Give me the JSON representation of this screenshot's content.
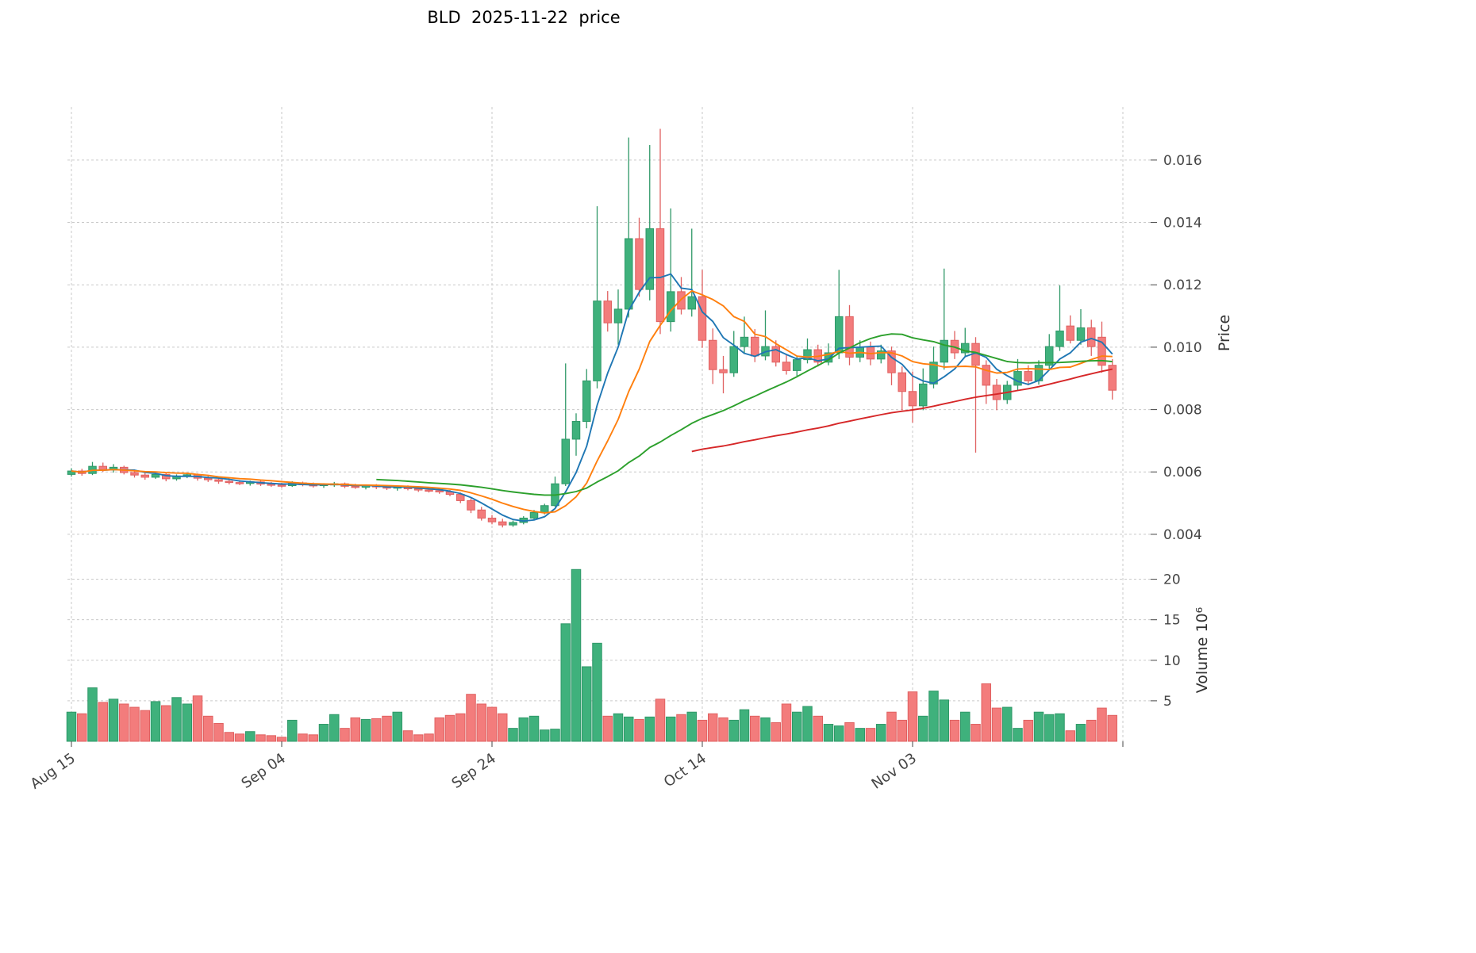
{
  "chart_data": {
    "type": "candlestick",
    "title": "BLD  2025-11-22  price",
    "ylabel_price": "Price",
    "ylabel_volume": "Volume",
    "volume_unit": "10⁶",
    "grid": true,
    "legend": "none",
    "price_ticks": [
      0.004,
      0.006,
      0.008,
      0.01,
      0.012,
      0.014,
      0.016
    ],
    "volume_ticks": [
      5,
      10,
      15,
      20
    ],
    "x_ticks": [
      {
        "label": "Aug 15",
        "day_index": 0
      },
      {
        "label": "Sep 04",
        "day_index": 20
      },
      {
        "label": "Sep 24",
        "day_index": 40
      },
      {
        "label": "Oct 14",
        "day_index": 60
      },
      {
        "label": "Nov 03",
        "day_index": 80
      },
      {
        "label": "",
        "day_index": 100
      }
    ],
    "ylim_price": [
      0.00321,
      0.0177
    ],
    "ylim_volume": [
      0,
      22.5
    ],
    "colors": {
      "up": "#3fb17c",
      "up_edge": "#2f9868",
      "down": "#f37c7c",
      "down_edge": "#e06060",
      "grid": "#c9c9c9",
      "text": "#444444",
      "title": "#000000"
    },
    "moving_averages": [
      {
        "label": "MA5",
        "window": 5,
        "color": "#1f77b4",
        "full_window_only": false
      },
      {
        "label": "MA10",
        "window": 10,
        "color": "#ff7f0e",
        "full_window_only": false
      },
      {
        "label": "MA30",
        "window": 30,
        "color": "#2ca02c",
        "full_window_only": true
      },
      {
        "label": "MA60",
        "window": 60,
        "color": "#d62728",
        "full_window_only": true
      }
    ],
    "dates": [
      "2025-08-15",
      "2025-08-16",
      "2025-08-17",
      "2025-08-18",
      "2025-08-19",
      "2025-08-20",
      "2025-08-21",
      "2025-08-22",
      "2025-08-23",
      "2025-08-24",
      "2025-08-25",
      "2025-08-26",
      "2025-08-27",
      "2025-08-28",
      "2025-08-29",
      "2025-08-30",
      "2025-08-31",
      "2025-09-01",
      "2025-09-02",
      "2025-09-03",
      "2025-09-04",
      "2025-09-05",
      "2025-09-06",
      "2025-09-07",
      "2025-09-08",
      "2025-09-09",
      "2025-09-10",
      "2025-09-11",
      "2025-09-12",
      "2025-09-13",
      "2025-09-14",
      "2025-09-15",
      "2025-09-16",
      "2025-09-17",
      "2025-09-18",
      "2025-09-19",
      "2025-09-20",
      "2025-09-21",
      "2025-09-22",
      "2025-09-23",
      "2025-09-24",
      "2025-09-25",
      "2025-09-26",
      "2025-09-27",
      "2025-09-28",
      "2025-09-29",
      "2025-09-30",
      "2025-10-01",
      "2025-10-02",
      "2025-10-03",
      "2025-10-04",
      "2025-10-05",
      "2025-10-06",
      "2025-10-07",
      "2025-10-08",
      "2025-10-09",
      "2025-10-10",
      "2025-10-11",
      "2025-10-12",
      "2025-10-13",
      "2025-10-14",
      "2025-10-15",
      "2025-10-16",
      "2025-10-17",
      "2025-10-18",
      "2025-10-19",
      "2025-10-20",
      "2025-10-21",
      "2025-10-22",
      "2025-10-23",
      "2025-10-24",
      "2025-10-25",
      "2025-10-26",
      "2025-10-27",
      "2025-10-28",
      "2025-10-29",
      "2025-10-30",
      "2025-10-31",
      "2025-11-01",
      "2025-11-02",
      "2025-11-03",
      "2025-11-04",
      "2025-11-05",
      "2025-11-06",
      "2025-11-07",
      "2025-11-08",
      "2025-11-09",
      "2025-11-10",
      "2025-11-11",
      "2025-11-12",
      "2025-11-13",
      "2025-11-14",
      "2025-11-15",
      "2025-11-16",
      "2025-11-17",
      "2025-11-18",
      "2025-11-19",
      "2025-11-20",
      "2025-11-21",
      "2025-11-22"
    ],
    "open": [
      0.00592,
      0.00603,
      0.00595,
      0.00618,
      0.00607,
      0.00615,
      0.00598,
      0.0059,
      0.00583,
      0.00592,
      0.00578,
      0.00587,
      0.00591,
      0.0058,
      0.00575,
      0.0057,
      0.00566,
      0.00563,
      0.00568,
      0.00561,
      0.00558,
      0.00556,
      0.00565,
      0.00559,
      0.00556,
      0.0056,
      0.00562,
      0.00554,
      0.00551,
      0.00557,
      0.00552,
      0.00548,
      0.00553,
      0.00546,
      0.00542,
      0.0054,
      0.00536,
      0.00528,
      0.00508,
      0.00478,
      0.00452,
      0.0044,
      0.0043,
      0.00438,
      0.00452,
      0.0047,
      0.00492,
      0.00562,
      0.00705,
      0.00762,
      0.00892,
      0.01148,
      0.01078,
      0.01122,
      0.01348,
      0.01185,
      0.0138,
      0.01082,
      0.01178,
      0.01122,
      0.01162,
      0.01022,
      0.00928,
      0.00918,
      0.01002,
      0.01032,
      0.00972,
      0.01002,
      0.00952,
      0.00925,
      0.0096,
      0.00992,
      0.00952,
      0.00982,
      0.01098,
      0.00968,
      0.01,
      0.00962,
      0.00988,
      0.00918,
      0.00858,
      0.00812,
      0.00882,
      0.00952,
      0.01022,
      0.00982,
      0.01012,
      0.00942,
      0.00878,
      0.00832,
      0.00878,
      0.00922,
      0.00892,
      0.00942,
      0.01002,
      0.01068,
      0.01022,
      0.01062,
      0.01032,
      0.00942
    ],
    "high": [
      0.00612,
      0.0061,
      0.00632,
      0.0063,
      0.00625,
      0.0062,
      0.00608,
      0.006,
      0.00598,
      0.00596,
      0.00592,
      0.00598,
      0.00595,
      0.00588,
      0.00582,
      0.00578,
      0.00574,
      0.00572,
      0.00572,
      0.00568,
      0.00565,
      0.0057,
      0.00569,
      0.00566,
      0.00564,
      0.00568,
      0.00566,
      0.00562,
      0.0056,
      0.00561,
      0.00558,
      0.00556,
      0.00557,
      0.00552,
      0.00549,
      0.00546,
      0.00542,
      0.00534,
      0.00515,
      0.00488,
      0.00462,
      0.0045,
      0.00444,
      0.00458,
      0.00478,
      0.00498,
      0.00585,
      0.00948,
      0.00788,
      0.0093,
      0.01452,
      0.0118,
      0.01185,
      0.01672,
      0.01415,
      0.01648,
      0.017,
      0.01445,
      0.01225,
      0.0138,
      0.01248,
      0.0106,
      0.00972,
      0.01052,
      0.01098,
      0.01058,
      0.01118,
      0.01022,
      0.00978,
      0.00972,
      0.01028,
      0.01008,
      0.01012,
      0.01248,
      0.01135,
      0.01022,
      0.01018,
      0.01008,
      0.01002,
      0.00938,
      0.00922,
      0.00932,
      0.01002,
      0.01252,
      0.01052,
      0.01062,
      0.01032,
      0.00958,
      0.00898,
      0.00892,
      0.00962,
      0.00942,
      0.00958,
      0.01042,
      0.01198,
      0.01102,
      0.01122,
      0.01088,
      0.01082,
      0.00962
    ],
    "low": [
      0.00585,
      0.00588,
      0.0059,
      0.006,
      0.00598,
      0.00592,
      0.00582,
      0.00575,
      0.00578,
      0.0057,
      0.00572,
      0.0058,
      0.00572,
      0.00568,
      0.00562,
      0.0056,
      0.00558,
      0.00556,
      0.00555,
      0.00552,
      0.0055,
      0.00552,
      0.00554,
      0.0055,
      0.00549,
      0.00552,
      0.00548,
      0.00546,
      0.00544,
      0.00545,
      0.00542,
      0.0054,
      0.00541,
      0.00536,
      0.00534,
      0.0053,
      0.00522,
      0.005,
      0.00468,
      0.00444,
      0.00432,
      0.00422,
      0.00424,
      0.00432,
      0.00446,
      0.00464,
      0.00488,
      0.00555,
      0.00652,
      0.0074,
      0.00868,
      0.0105,
      0.01008,
      0.01095,
      0.01162,
      0.0115,
      0.01042,
      0.0105,
      0.01105,
      0.01098,
      0.00998,
      0.00882,
      0.00852,
      0.00905,
      0.00978,
      0.00952,
      0.00958,
      0.00938,
      0.00912,
      0.00908,
      0.00948,
      0.00938,
      0.00942,
      0.00962,
      0.00942,
      0.00952,
      0.00942,
      0.00948,
      0.00878,
      0.00798,
      0.00758,
      0.00798,
      0.00868,
      0.00928,
      0.00962,
      0.00968,
      0.00662,
      0.00818,
      0.00798,
      0.00818,
      0.00862,
      0.00878,
      0.0088,
      0.00928,
      0.00988,
      0.01012,
      0.01008,
      0.00972,
      0.00918,
      0.00832
    ],
    "close": [
      0.00603,
      0.00595,
      0.00618,
      0.00607,
      0.00615,
      0.00598,
      0.0059,
      0.00583,
      0.00592,
      0.00578,
      0.00587,
      0.00591,
      0.0058,
      0.00575,
      0.0057,
      0.00566,
      0.00563,
      0.00568,
      0.00561,
      0.00558,
      0.00556,
      0.00565,
      0.00559,
      0.00556,
      0.0056,
      0.00562,
      0.00554,
      0.00551,
      0.00557,
      0.00552,
      0.00548,
      0.00553,
      0.00546,
      0.00542,
      0.0054,
      0.00536,
      0.00528,
      0.00508,
      0.00478,
      0.00452,
      0.0044,
      0.0043,
      0.00438,
      0.00452,
      0.0047,
      0.00492,
      0.00562,
      0.00705,
      0.00762,
      0.00892,
      0.01148,
      0.01078,
      0.01122,
      0.01348,
      0.01185,
      0.0138,
      0.01082,
      0.01178,
      0.01122,
      0.01162,
      0.01022,
      0.00928,
      0.00918,
      0.01002,
      0.01032,
      0.00972,
      0.01002,
      0.00952,
      0.00925,
      0.0096,
      0.00992,
      0.00952,
      0.00982,
      0.01098,
      0.00968,
      0.01,
      0.00962,
      0.00988,
      0.00918,
      0.00858,
      0.00812,
      0.00882,
      0.00952,
      0.01022,
      0.00982,
      0.01012,
      0.00942,
      0.00878,
      0.00832,
      0.00878,
      0.00922,
      0.00892,
      0.00942,
      0.01002,
      0.01052,
      0.01022,
      0.01062,
      0.01002,
      0.00942,
      0.00862
    ],
    "volume_millions": [
      3.6,
      3.4,
      6.6,
      4.8,
      5.2,
      4.6,
      4.2,
      3.8,
      4.9,
      4.4,
      5.4,
      4.6,
      5.6,
      3.1,
      2.2,
      1.1,
      0.9,
      1.2,
      0.8,
      0.7,
      0.5,
      2.6,
      0.9,
      0.8,
      2.1,
      3.3,
      1.6,
      2.9,
      2.7,
      2.8,
      3.1,
      3.6,
      1.3,
      0.8,
      0.9,
      2.9,
      3.2,
      3.4,
      5.8,
      4.6,
      4.2,
      3.4,
      1.6,
      2.9,
      3.1,
      1.4,
      1.5,
      14.5,
      21.2,
      9.2,
      12.1,
      3.1,
      3.4,
      3.0,
      2.7,
      3.0,
      5.2,
      3.0,
      3.3,
      3.6,
      2.6,
      3.4,
      2.9,
      2.6,
      3.9,
      3.1,
      2.9,
      2.3,
      4.6,
      3.6,
      4.3,
      3.1,
      2.1,
      1.9,
      2.3,
      1.6,
      1.6,
      2.1,
      3.6,
      2.6,
      6.1,
      3.1,
      6.2,
      5.1,
      2.6,
      3.6,
      2.1,
      7.1,
      4.1,
      4.2,
      1.6,
      2.6,
      3.6,
      3.3,
      3.4,
      1.3,
      2.1,
      2.6,
      4.1,
      3.2
    ]
  }
}
